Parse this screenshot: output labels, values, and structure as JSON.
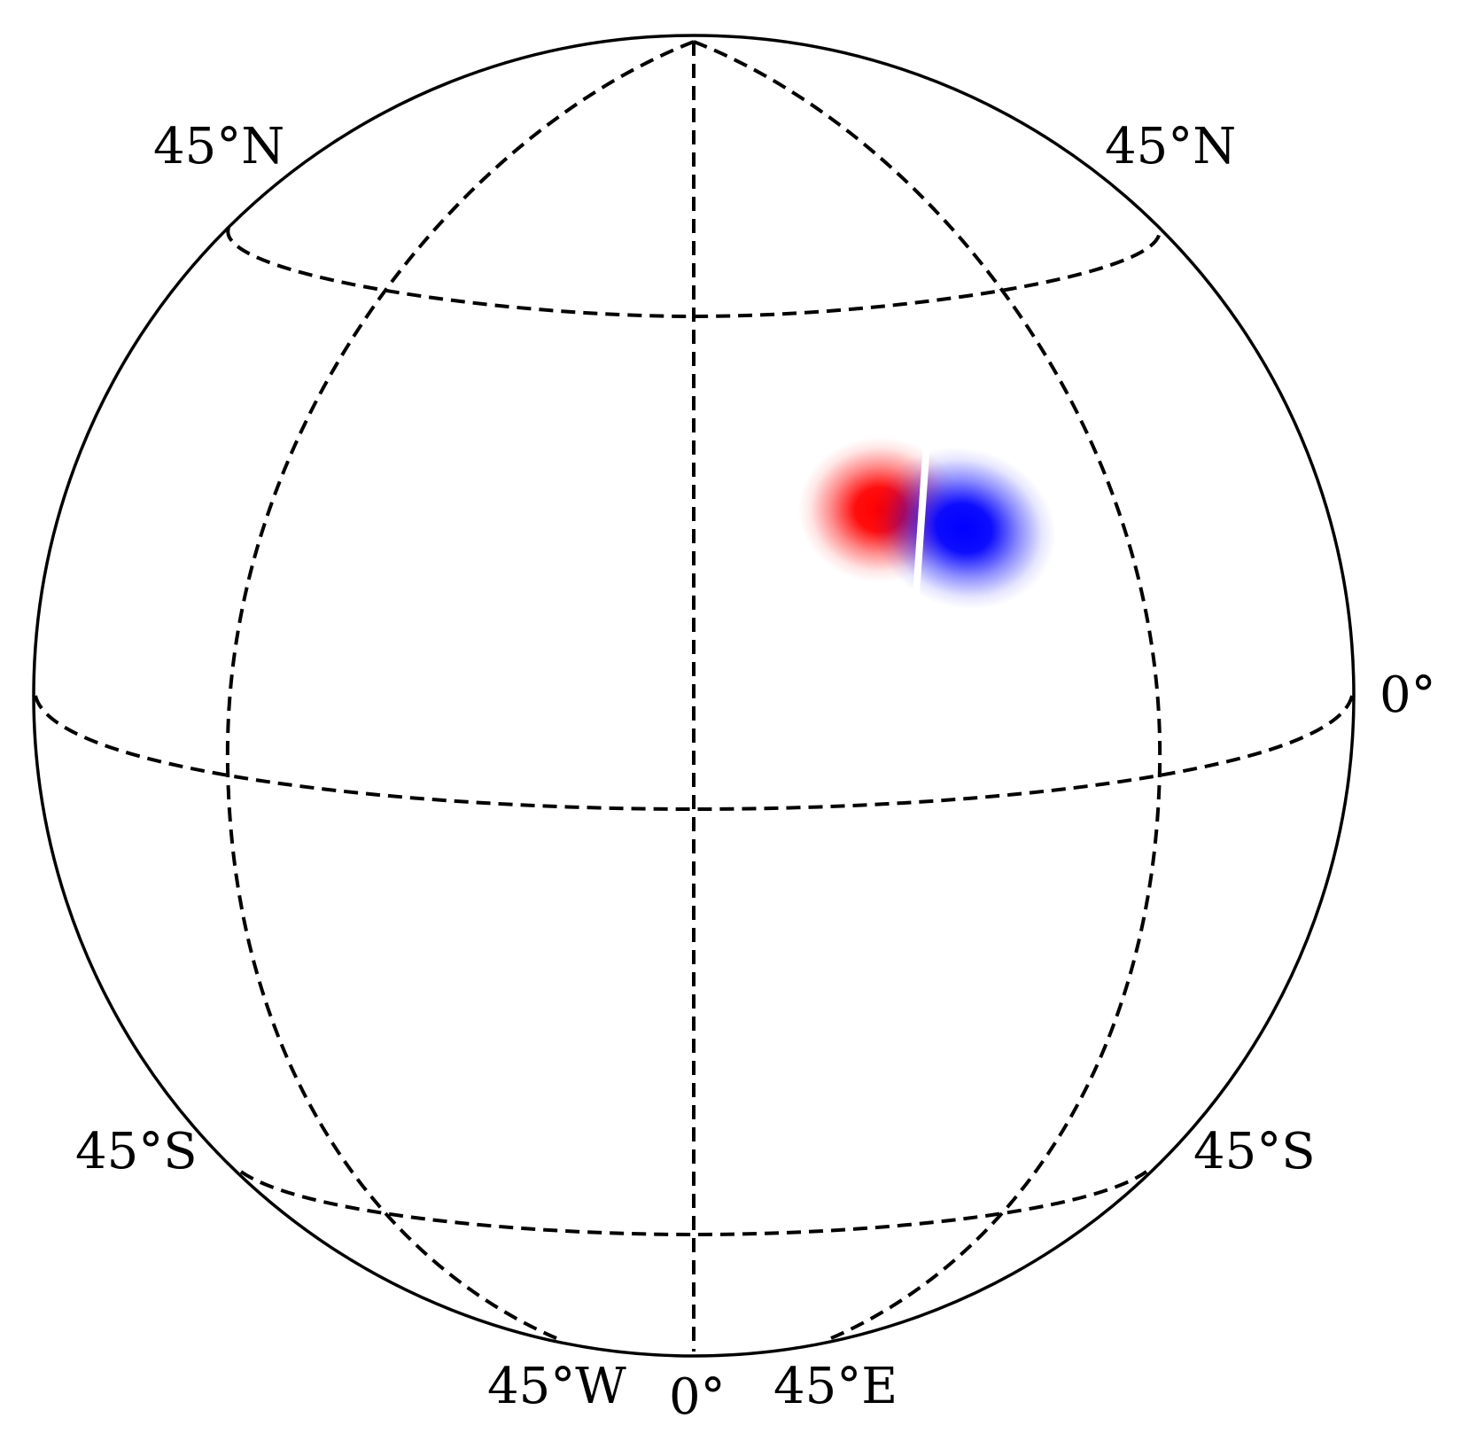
{
  "map": {
    "projection": "orthographic",
    "view_center": {
      "lon": 0,
      "lat": 10
    },
    "graticule": {
      "meridians": [
        -45,
        0,
        45
      ],
      "parallels": [
        -45,
        0,
        45
      ],
      "line_style": "dashed",
      "color": "#000000"
    },
    "labels": {
      "lat_45n_left": "45°N",
      "lat_45n_right": "45°N",
      "lat_0_right": "0°",
      "lat_45s_left": "45°S",
      "lat_45s_right": "45°S",
      "lon_45w": "45°W",
      "lon_0": "0°",
      "lon_45e": "45°E"
    },
    "features": [
      {
        "name": "positive-blob",
        "color": "#ff0000",
        "lon": 12,
        "lat": 24
      },
      {
        "name": "negative-blob",
        "color": "#0000ff",
        "lon": 17,
        "lat": 22
      }
    ]
  }
}
